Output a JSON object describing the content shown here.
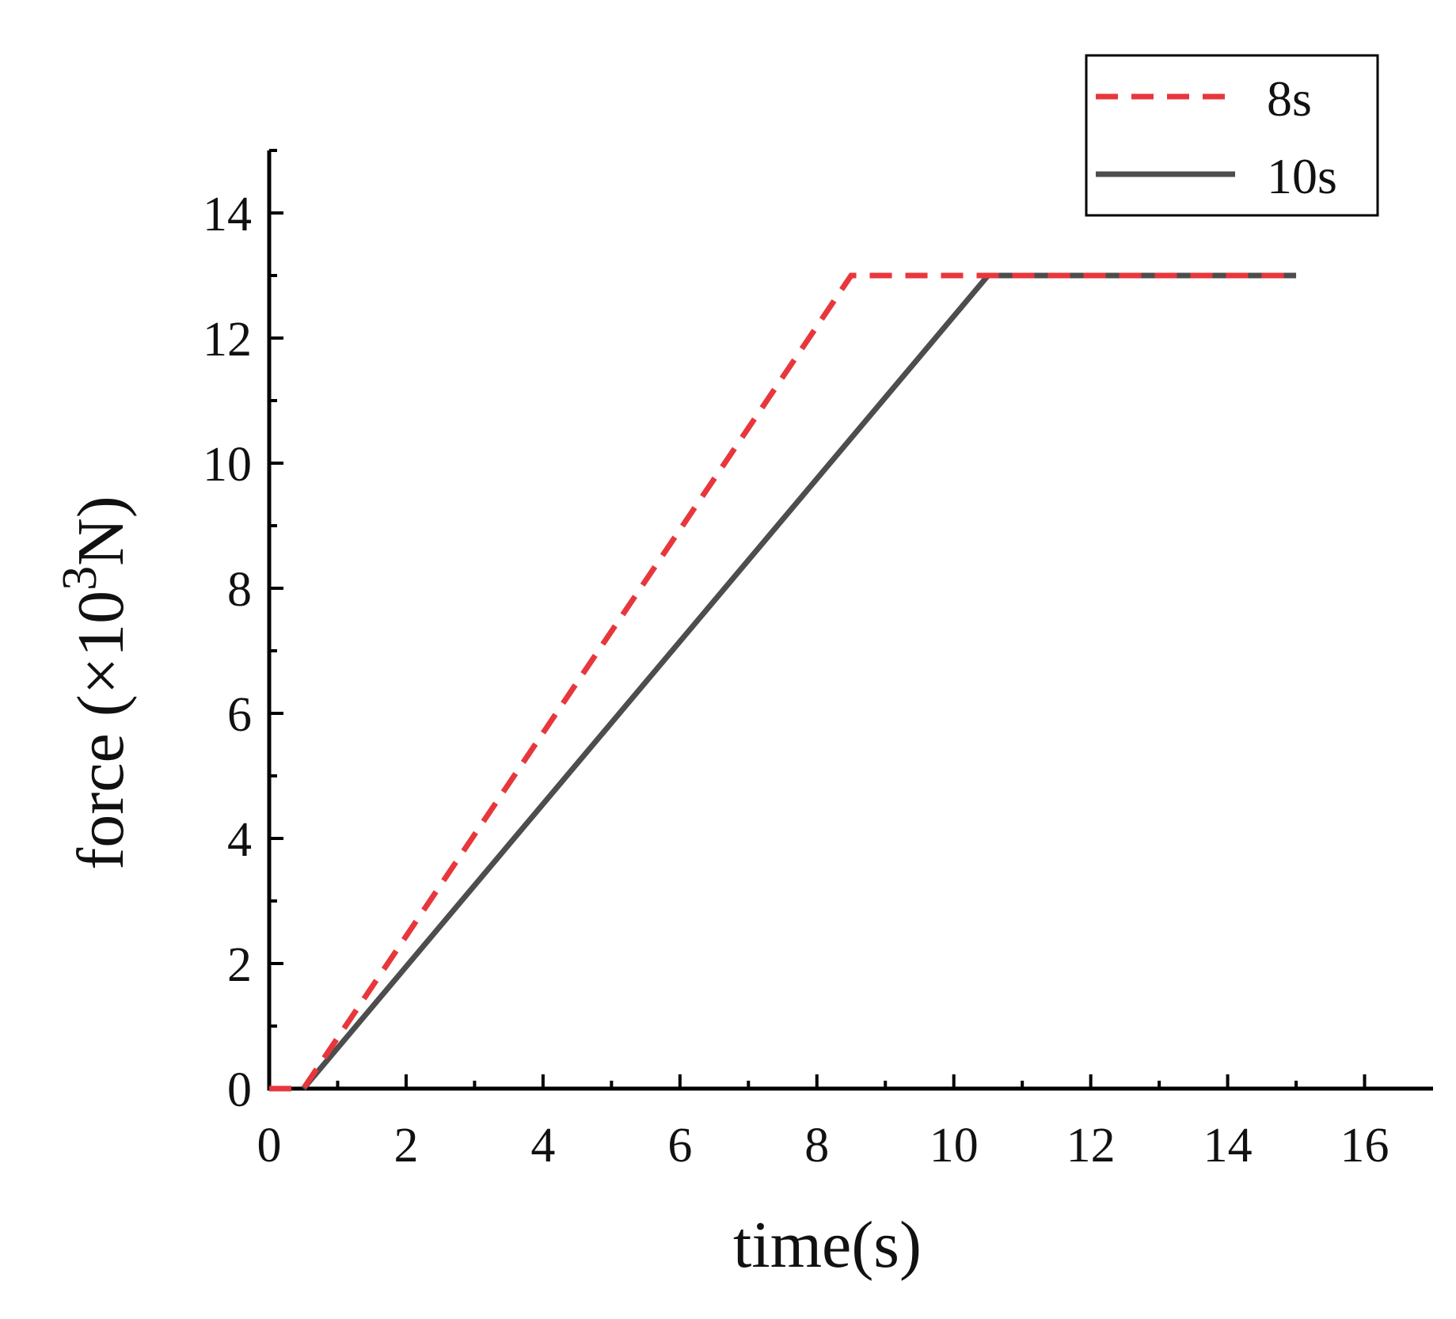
{
  "chart_data": {
    "type": "line",
    "title": "",
    "xlabel": "time(s)",
    "ylabel": "force (×10",
    "ylabel_exponent": "3",
    "ylabel_unit": "N)",
    "xlim": [
      0,
      17
    ],
    "ylim": [
      0,
      15
    ],
    "xticks": [
      0,
      2,
      4,
      6,
      8,
      10,
      12,
      14,
      16
    ],
    "xtick_labels": [
      "0",
      "2",
      "4",
      "6",
      "8",
      "10",
      "12",
      "14",
      "16"
    ],
    "yticks": [
      0,
      2,
      4,
      6,
      8,
      10,
      12,
      14
    ],
    "ytick_labels": [
      "0",
      "2",
      "4",
      "6",
      "8",
      "10",
      "12",
      "14"
    ],
    "x_minor_step": 1,
    "y_minor_step": 1,
    "grid": false,
    "legend_position": "top-right",
    "series": [
      {
        "name": "8s",
        "style": "dashed",
        "color": "#e8373c",
        "x": [
          0,
          0.5,
          8.5,
          15
        ],
        "y": [
          0,
          0,
          13,
          13
        ]
      },
      {
        "name": "10s",
        "style": "solid",
        "color": "#4d4d4d",
        "x": [
          0.5,
          10.5,
          15
        ],
        "y": [
          0,
          13,
          13
        ]
      }
    ]
  }
}
